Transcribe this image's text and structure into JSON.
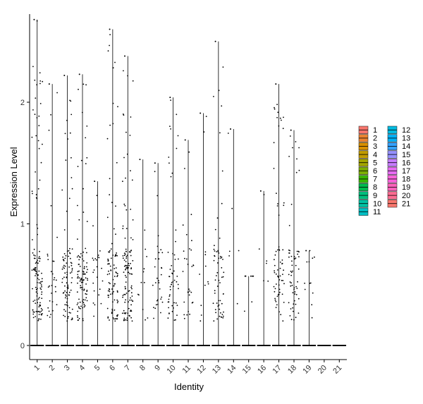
{
  "chart_data": {
    "type": "violin",
    "xlabel": "Identity",
    "ylabel": "Expression Level",
    "categories": [
      "1",
      "2",
      "3",
      "4",
      "5",
      "6",
      "7",
      "8",
      "9",
      "10",
      "11",
      "12",
      "13",
      "14",
      "15",
      "16",
      "17",
      "18",
      "19",
      "20",
      "21"
    ],
    "yticks": [
      0,
      1,
      2
    ],
    "ylim": [
      -0.12,
      2.75
    ],
    "max_values": [
      2.68,
      2.15,
      2.22,
      2.23,
      1.35,
      2.6,
      2.38,
      1.53,
      1.5,
      2.04,
      1.69,
      1.91,
      2.5,
      1.78,
      0.57,
      1.27,
      2.15,
      1.77,
      0.78,
      0,
      0
    ],
    "legend": {
      "title": "",
      "placement": "right",
      "entries": [
        "1",
        "2",
        "3",
        "4",
        "5",
        "6",
        "7",
        "8",
        "9",
        "10",
        "11",
        "12",
        "13",
        "14",
        "15",
        "16",
        "17",
        "18",
        "19",
        "20",
        "21"
      ],
      "colors": [
        "#F8766D",
        "#EA8331",
        "#D89000",
        "#C09B00",
        "#A3A500",
        "#7CAE00",
        "#39B600",
        "#00BB4E",
        "#00BF7D",
        "#00C1A3",
        "#00BFC4",
        "#00BAE0",
        "#00B0F6",
        "#35A2FF",
        "#9590FF",
        "#C77CFF",
        "#E76BF3",
        "#FA62DB",
        "#FF62BC",
        "#FF6C91",
        "#F8766D"
      ]
    },
    "grid": false
  }
}
